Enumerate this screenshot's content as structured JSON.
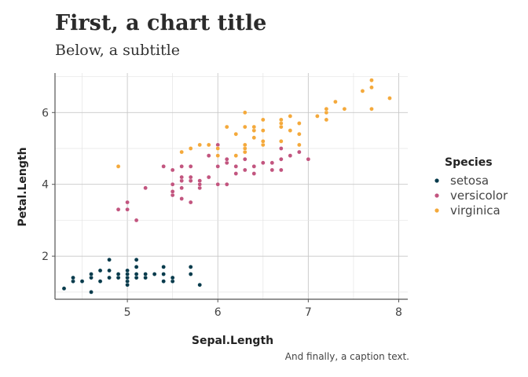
{
  "chart_data": {
    "type": "scatter",
    "title": "First, a chart title",
    "subtitle": "Below, a subtitle",
    "caption": "And finally, a caption text.",
    "xlabel": "Sepal.Length",
    "ylabel": "Petal.Length",
    "xlim": [
      4.2,
      8.1
    ],
    "ylim": [
      0.8,
      7.1
    ],
    "x_ticks": [
      5,
      6,
      7,
      8
    ],
    "y_ticks": [
      2,
      4,
      6
    ],
    "grid": true,
    "legend": {
      "title": "Species",
      "placement": "right"
    },
    "series": [
      {
        "name": "setosa",
        "color": "#073b4c",
        "points": [
          [
            4.3,
            1.1
          ],
          [
            4.4,
            1.3
          ],
          [
            4.4,
            1.4
          ],
          [
            4.5,
            1.3
          ],
          [
            4.6,
            1.0
          ],
          [
            4.6,
            1.4
          ],
          [
            4.6,
            1.5
          ],
          [
            4.7,
            1.3
          ],
          [
            4.7,
            1.6
          ],
          [
            4.8,
            1.4
          ],
          [
            4.8,
            1.6
          ],
          [
            4.8,
            1.9
          ],
          [
            4.9,
            1.4
          ],
          [
            4.9,
            1.5
          ],
          [
            5.0,
            1.2
          ],
          [
            5.0,
            1.3
          ],
          [
            5.0,
            1.4
          ],
          [
            5.0,
            1.5
          ],
          [
            5.0,
            1.6
          ],
          [
            5.1,
            1.4
          ],
          [
            5.1,
            1.5
          ],
          [
            5.1,
            1.7
          ],
          [
            5.1,
            1.9
          ],
          [
            5.2,
            1.4
          ],
          [
            5.2,
            1.5
          ],
          [
            5.3,
            1.5
          ],
          [
            5.4,
            1.3
          ],
          [
            5.4,
            1.5
          ],
          [
            5.4,
            1.7
          ],
          [
            5.5,
            1.3
          ],
          [
            5.5,
            1.4
          ],
          [
            5.7,
            1.5
          ],
          [
            5.7,
            1.7
          ],
          [
            5.8,
            1.2
          ]
        ]
      },
      {
        "name": "versicolor",
        "color": "#c2557f",
        "points": [
          [
            4.9,
            3.3
          ],
          [
            5.0,
            3.3
          ],
          [
            5.0,
            3.5
          ],
          [
            5.1,
            3.0
          ],
          [
            5.2,
            3.9
          ],
          [
            5.4,
            4.5
          ],
          [
            5.5,
            3.7
          ],
          [
            5.5,
            3.8
          ],
          [
            5.5,
            4.0
          ],
          [
            5.5,
            4.4
          ],
          [
            5.6,
            3.6
          ],
          [
            5.6,
            3.9
          ],
          [
            5.6,
            4.1
          ],
          [
            5.6,
            4.2
          ],
          [
            5.6,
            4.5
          ],
          [
            5.7,
            3.5
          ],
          [
            5.7,
            4.1
          ],
          [
            5.7,
            4.2
          ],
          [
            5.7,
            4.5
          ],
          [
            5.8,
            3.9
          ],
          [
            5.8,
            4.0
          ],
          [
            5.8,
            4.1
          ],
          [
            5.9,
            4.2
          ],
          [
            5.9,
            4.8
          ],
          [
            6.0,
            4.0
          ],
          [
            6.0,
            4.5
          ],
          [
            6.0,
            5.1
          ],
          [
            6.1,
            4.0
          ],
          [
            6.1,
            4.6
          ],
          [
            6.1,
            4.7
          ],
          [
            6.2,
            4.3
          ],
          [
            6.2,
            4.5
          ],
          [
            6.3,
            4.4
          ],
          [
            6.3,
            4.7
          ],
          [
            6.3,
            4.9
          ],
          [
            6.4,
            4.3
          ],
          [
            6.4,
            4.5
          ],
          [
            6.5,
            4.6
          ],
          [
            6.6,
            4.4
          ],
          [
            6.6,
            4.6
          ],
          [
            6.7,
            4.4
          ],
          [
            6.7,
            4.7
          ],
          [
            6.7,
            5.0
          ],
          [
            6.8,
            4.8
          ],
          [
            6.9,
            4.9
          ],
          [
            7.0,
            4.7
          ]
        ]
      },
      {
        "name": "virginica",
        "color": "#f4a93b",
        "points": [
          [
            4.9,
            4.5
          ],
          [
            5.6,
            4.9
          ],
          [
            5.7,
            5.0
          ],
          [
            5.8,
            5.1
          ],
          [
            5.9,
            5.1
          ],
          [
            6.0,
            4.8
          ],
          [
            6.0,
            5.0
          ],
          [
            6.1,
            5.6
          ],
          [
            6.2,
            4.8
          ],
          [
            6.2,
            5.4
          ],
          [
            6.3,
            4.9
          ],
          [
            6.3,
            5.0
          ],
          [
            6.3,
            5.1
          ],
          [
            6.3,
            5.6
          ],
          [
            6.3,
            6.0
          ],
          [
            6.4,
            5.3
          ],
          [
            6.4,
            5.5
          ],
          [
            6.4,
            5.6
          ],
          [
            6.5,
            5.1
          ],
          [
            6.5,
            5.2
          ],
          [
            6.5,
            5.5
          ],
          [
            6.5,
            5.8
          ],
          [
            6.7,
            5.2
          ],
          [
            6.7,
            5.6
          ],
          [
            6.7,
            5.7
          ],
          [
            6.7,
            5.8
          ],
          [
            6.8,
            5.5
          ],
          [
            6.8,
            5.9
          ],
          [
            6.9,
            5.1
          ],
          [
            6.9,
            5.4
          ],
          [
            6.9,
            5.7
          ],
          [
            7.1,
            5.9
          ],
          [
            7.2,
            5.8
          ],
          [
            7.2,
            6.0
          ],
          [
            7.2,
            6.1
          ],
          [
            7.3,
            6.3
          ],
          [
            7.4,
            6.1
          ],
          [
            7.6,
            6.6
          ],
          [
            7.7,
            6.1
          ],
          [
            7.7,
            6.7
          ],
          [
            7.7,
            6.9
          ],
          [
            7.9,
            6.4
          ]
        ]
      }
    ]
  }
}
